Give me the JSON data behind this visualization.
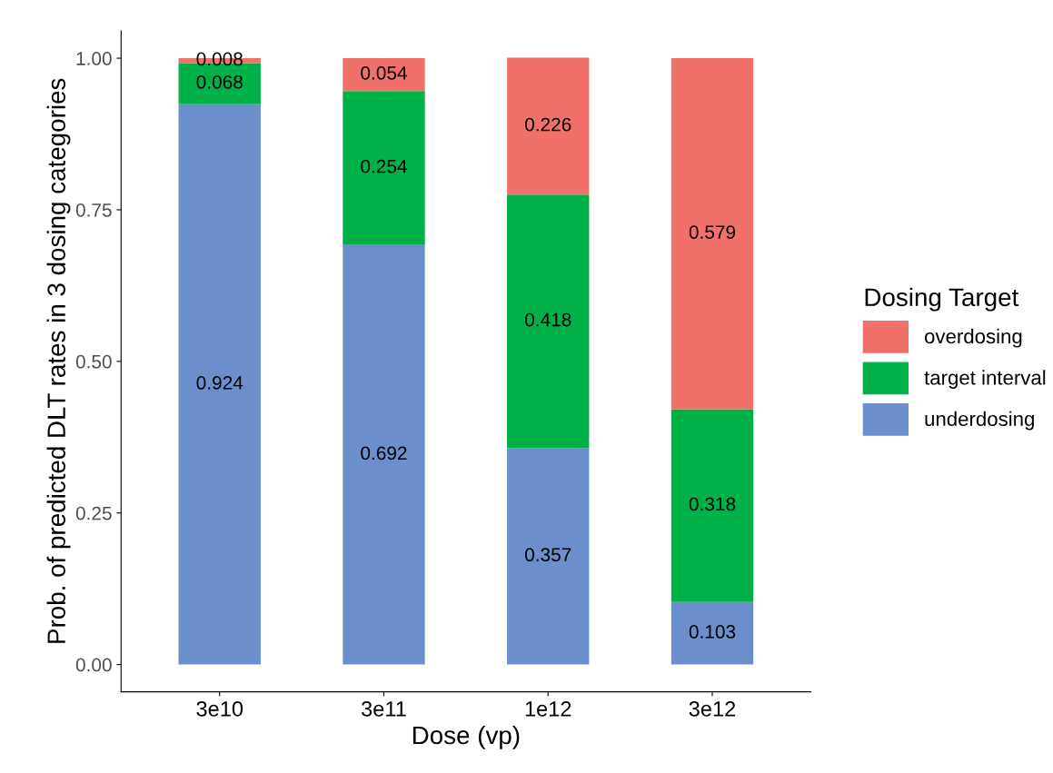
{
  "chart_data": {
    "type": "bar",
    "stacked": true,
    "xlabel": "Dose (vp)",
    "ylabel": "Prob. of predicted DLT rates in 3 dosing categories",
    "legend_title": "Dosing Target",
    "legend": "right",
    "categories": [
      "3e10",
      "3e11",
      "1e12",
      "3e12"
    ],
    "series": [
      {
        "name": "underdosing",
        "color": "#6a8fcc",
        "values": [
          0.924,
          0.692,
          0.357,
          0.103
        ]
      },
      {
        "name": "target interval",
        "color": "#00b14a",
        "values": [
          0.068,
          0.254,
          0.418,
          0.318
        ]
      },
      {
        "name": "overdosing",
        "color": "#f0706a",
        "values": [
          0.008,
          0.054,
          0.226,
          0.579
        ]
      }
    ],
    "ylim": [
      -0.045,
      1.045
    ],
    "yticks": [
      {
        "value": 0,
        "label": "0.00"
      },
      {
        "value": 0.25,
        "label": "0.25"
      },
      {
        "value": 0.5,
        "label": "0.50"
      },
      {
        "value": 0.75,
        "label": "0.75"
      },
      {
        "value": 1,
        "label": "1.00"
      }
    ],
    "data_labels": true,
    "grid": false
  }
}
